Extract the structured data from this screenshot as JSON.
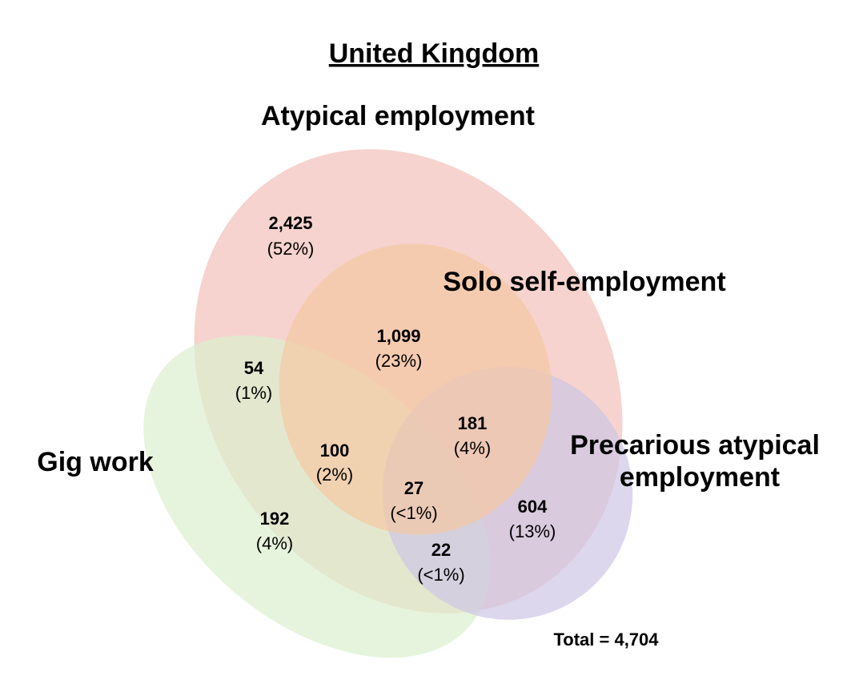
{
  "title": "United Kingdom",
  "sets": [
    {
      "id": "atypical",
      "label": "Atypical employment",
      "color": "#f4cbc6"
    },
    {
      "id": "solo",
      "label": "Solo self-employment",
      "color": "#f5c7a4"
    },
    {
      "id": "gig",
      "label": "Gig work",
      "color": "#dbf0cf"
    },
    {
      "id": "precarious",
      "label_lines": [
        "Precarious atypical",
        "employment"
      ],
      "color": "#cdc6e6"
    }
  ],
  "regions": [
    {
      "count": "2,425",
      "pct": "(52%)",
      "sets": [
        "atypical"
      ]
    },
    {
      "count": "1,099",
      "pct": "(23%)",
      "sets": [
        "atypical",
        "solo"
      ]
    },
    {
      "count": "54",
      "pct": "(1%)",
      "sets": [
        "atypical",
        "gig"
      ]
    },
    {
      "count": "100",
      "pct": "(2%)",
      "sets": [
        "atypical",
        "solo",
        "gig"
      ]
    },
    {
      "count": "181",
      "pct": "(4%)",
      "sets": [
        "atypical",
        "solo",
        "precarious"
      ]
    },
    {
      "count": "27",
      "pct": "(<1%)",
      "sets": [
        "atypical",
        "solo",
        "gig",
        "precarious"
      ]
    },
    {
      "count": "604",
      "pct": "(13%)",
      "sets": [
        "atypical",
        "precarious"
      ]
    },
    {
      "count": "192",
      "pct": "(4%)",
      "sets": [
        "gig"
      ]
    },
    {
      "count": "22",
      "pct": "(<1%)",
      "sets": [
        "atypical",
        "gig",
        "precarious"
      ]
    }
  ],
  "total": "Total = 4,704"
}
